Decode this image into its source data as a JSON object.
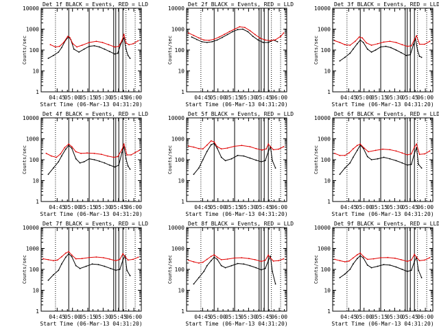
{
  "figure": {
    "start_time": "06-Mar-13 04:31:20",
    "xlabel": "Start Time (06-Mar-13 04:31:20)",
    "ylabel": "Counts/sec",
    "x_tick_labels": [
      "04:45",
      "05:00",
      "05:15",
      "05:30",
      "05:45",
      "06:00"
    ],
    "y_tick_labels": [
      "1",
      "10",
      "100",
      "1000",
      "10000"
    ],
    "colors": {
      "events": "#000000",
      "lld": "#e00000"
    }
  },
  "chart_data": [
    {
      "type": "line",
      "title": "Det 1f BLACK = Events, RED = LLD",
      "xlabel": "Start Time (06-Mar-13 04:31:20)",
      "ylabel": "Counts/sec",
      "xlim_min": [
        -2,
        96
      ],
      "ylim": [
        1,
        10000
      ],
      "yscale": "log",
      "dotted_vlines_min": [
        12,
        81,
        90
      ],
      "solid_vlines_min": [
        25,
        45,
        69,
        71,
        74,
        78
      ],
      "series": [
        {
          "name": "Events",
          "color": "#000000",
          "x": [
            5,
            10,
            15,
            18,
            22,
            25,
            27,
            30,
            35,
            40,
            45,
            50,
            55,
            60,
            65,
            70,
            73,
            76,
            79,
            81,
            83,
            85
          ],
          "y": [
            40,
            55,
            80,
            130,
            300,
            430,
            320,
            110,
            80,
            110,
            150,
            160,
            140,
            110,
            85,
            65,
            70,
            200,
            380,
            110,
            55,
            40
          ]
        },
        {
          "name": "LLD",
          "color": "#e00000",
          "x": [
            7,
            12,
            16,
            20,
            24,
            26,
            29,
            33,
            38,
            45,
            52,
            58,
            64,
            70,
            74,
            77,
            79,
            81,
            84,
            88,
            93
          ],
          "y": [
            180,
            140,
            150,
            230,
            450,
            400,
            200,
            140,
            170,
            230,
            260,
            230,
            180,
            140,
            150,
            280,
            560,
            220,
            180,
            200,
            280
          ]
        }
      ]
    },
    {
      "type": "line",
      "title": "Det 2f BLACK = Events, RED = LLD",
      "xlabel": "Start Time (06-Mar-13 04:31:20)",
      "ylabel": "Counts/sec",
      "xlim_min": [
        -2,
        96
      ],
      "ylim": [
        1,
        10000
      ],
      "yscale": "log",
      "dotted_vlines_min": [
        12,
        81,
        90
      ],
      "solid_vlines_min": [
        25,
        45,
        69,
        71,
        74,
        78
      ],
      "series": [
        {
          "name": "Events",
          "color": "#000000",
          "x": [
            3,
            8,
            13,
            18,
            23,
            28,
            33,
            38,
            43,
            48,
            53,
            58,
            63,
            68,
            73,
            78,
            83,
            87
          ],
          "y": [
            420,
            320,
            250,
            230,
            250,
            300,
            400,
            550,
            750,
            950,
            1000,
            750,
            450,
            300,
            230,
            230,
            300,
            250
          ]
        },
        {
          "name": "LLD",
          "color": "#e00000",
          "x": [
            0,
            5,
            10,
            15,
            20,
            25,
            30,
            35,
            40,
            45,
            50,
            55,
            60,
            65,
            70,
            75,
            80,
            85,
            90,
            93
          ],
          "y": [
            650,
            500,
            380,
            300,
            290,
            330,
            420,
            560,
            760,
            1000,
            1300,
            1200,
            850,
            550,
            370,
            300,
            280,
            310,
            450,
            650
          ]
        }
      ]
    },
    {
      "type": "line",
      "title": "Det 3f BLACK = Events, RED = LLD",
      "xlabel": "Start Time (06-Mar-13 04:31:20)",
      "ylabel": "Counts/sec",
      "xlim_min": [
        -2,
        96
      ],
      "ylim": [
        1,
        10000
      ],
      "yscale": "log",
      "dotted_vlines_min": [
        12,
        81,
        90
      ],
      "solid_vlines_min": [
        25,
        45,
        69,
        71,
        74,
        78
      ],
      "series": [
        {
          "name": "Events",
          "color": "#000000",
          "x": [
            5,
            10,
            15,
            18,
            22,
            25,
            28,
            32,
            36,
            40,
            45,
            50,
            55,
            60,
            65,
            70,
            74,
            77,
            79,
            81,
            83,
            85
          ],
          "y": [
            30,
            45,
            70,
            110,
            200,
            300,
            230,
            110,
            80,
            100,
            140,
            150,
            130,
            100,
            75,
            55,
            60,
            180,
            340,
            100,
            50,
            45
          ]
        },
        {
          "name": "LLD",
          "color": "#e00000",
          "x": [
            0,
            5,
            10,
            15,
            20,
            24,
            27,
            31,
            36,
            42,
            48,
            54,
            60,
            66,
            71,
            75,
            78,
            80,
            83,
            88,
            93
          ],
          "y": [
            280,
            230,
            180,
            170,
            260,
            420,
            380,
            220,
            170,
            200,
            240,
            260,
            230,
            180,
            150,
            160,
            320,
            480,
            190,
            190,
            260
          ]
        }
      ]
    },
    {
      "type": "line",
      "title": "Det 4f BLACK = Events, RED = LLD",
      "xlabel": "Start Time (06-Mar-13 04:31:20)",
      "ylabel": "Counts/sec",
      "xlim_min": [
        -2,
        96
      ],
      "ylim": [
        1,
        10000
      ],
      "yscale": "log",
      "dotted_vlines_min": [
        12,
        81,
        90
      ],
      "solid_vlines_min": [
        25,
        45,
        69,
        71,
        74,
        78
      ],
      "series": [
        {
          "name": "Events",
          "color": "#000000",
          "x": [
            5,
            10,
            15,
            18,
            22,
            25,
            28,
            32,
            36,
            40,
            45,
            50,
            55,
            60,
            65,
            70,
            74,
            77,
            79,
            81,
            83,
            85
          ],
          "y": [
            20,
            40,
            80,
            150,
            320,
            480,
            350,
            110,
            70,
            80,
            110,
            100,
            85,
            70,
            55,
            45,
            55,
            220,
            420,
            110,
            50,
            35
          ]
        },
        {
          "name": "LLD",
          "color": "#e00000",
          "x": [
            3,
            8,
            13,
            17,
            21,
            25,
            28,
            32,
            37,
            43,
            50,
            57,
            63,
            69,
            73,
            77,
            79,
            82,
            86,
            90,
            94
          ],
          "y": [
            200,
            150,
            130,
            190,
            380,
            560,
            420,
            240,
            200,
            210,
            200,
            180,
            150,
            130,
            140,
            300,
            560,
            170,
            170,
            220,
            280
          ]
        }
      ]
    },
    {
      "type": "line",
      "title": "Det 5f BLACK = Events, RED = LLD",
      "xlabel": "Start Time (06-Mar-13 04:31:20)",
      "ylabel": "Counts/sec",
      "xlim_min": [
        -2,
        96
      ],
      "ylim": [
        1,
        10000
      ],
      "yscale": "log",
      "dotted_vlines_min": [
        12,
        81,
        90
      ],
      "solid_vlines_min": [
        25,
        45,
        69,
        71,
        74,
        78
      ],
      "series": [
        {
          "name": "Events",
          "color": "#000000",
          "x": [
            5,
            10,
            14,
            18,
            22,
            25,
            28,
            32,
            36,
            42,
            48,
            54,
            60,
            66,
            71,
            75,
            78,
            80,
            82,
            85
          ],
          "y": [
            20,
            40,
            100,
            250,
            520,
            600,
            350,
            130,
            90,
            110,
            160,
            150,
            120,
            95,
            80,
            90,
            250,
            420,
            90,
            40
          ]
        },
        {
          "name": "LLD",
          "color": "#e00000",
          "x": [
            0,
            5,
            10,
            14,
            18,
            22,
            25,
            28,
            32,
            38,
            45,
            52,
            60,
            66,
            72,
            76,
            78,
            80,
            83,
            88,
            93
          ],
          "y": [
            450,
            400,
            340,
            330,
            500,
            800,
            700,
            420,
            330,
            360,
            440,
            480,
            420,
            340,
            290,
            330,
            560,
            420,
            300,
            320,
            420
          ]
        }
      ]
    },
    {
      "type": "line",
      "title": "Det 6f BLACK = Events, RED = LLD",
      "xlabel": "Start Time (06-Mar-13 04:31:20)",
      "ylabel": "Counts/sec",
      "xlim_min": [
        -2,
        96
      ],
      "ylim": [
        1,
        10000
      ],
      "yscale": "log",
      "dotted_vlines_min": [
        12,
        81,
        90
      ],
      "solid_vlines_min": [
        25,
        45,
        69,
        71,
        74,
        78
      ],
      "series": [
        {
          "name": "Events",
          "color": "#000000",
          "x": [
            5,
            10,
            15,
            18,
            22,
            25,
            28,
            32,
            36,
            42,
            48,
            54,
            60,
            66,
            71,
            75,
            78,
            80,
            82,
            85
          ],
          "y": [
            20,
            40,
            70,
            130,
            280,
            500,
            350,
            140,
            100,
            110,
            130,
            110,
            90,
            70,
            55,
            60,
            200,
            380,
            60,
            40
          ]
        },
        {
          "name": "LLD",
          "color": "#e00000",
          "x": [
            0,
            5,
            10,
            14,
            18,
            22,
            25,
            29,
            33,
            40,
            47,
            54,
            60,
            66,
            71,
            75,
            78,
            80,
            83,
            88,
            93
          ],
          "y": [
            200,
            160,
            160,
            210,
            330,
            480,
            560,
            350,
            240,
            280,
            320,
            300,
            260,
            210,
            170,
            190,
            400,
            560,
            180,
            190,
            260
          ]
        }
      ]
    },
    {
      "type": "line",
      "title": "Det 7f BLACK = Events, RED = LLD",
      "xlabel": "Start Time (06-Mar-13 04:31:20)",
      "ylabel": "Counts/sec",
      "xlim_min": [
        -2,
        96
      ],
      "ylim": [
        1,
        10000
      ],
      "yscale": "log",
      "dotted_vlines_min": [
        12,
        81,
        90
      ],
      "solid_vlines_min": [
        25,
        45,
        69,
        71,
        74,
        78
      ],
      "series": [
        {
          "name": "Events",
          "color": "#000000",
          "x": [
            5,
            10,
            15,
            18,
            22,
            25,
            28,
            32,
            36,
            42,
            48,
            54,
            60,
            66,
            71,
            75,
            78,
            80,
            82,
            85
          ],
          "y": [
            30,
            55,
            90,
            180,
            380,
            560,
            400,
            150,
            110,
            140,
            180,
            170,
            140,
            110,
            90,
            100,
            280,
            450,
            90,
            50
          ]
        },
        {
          "name": "LLD",
          "color": "#e00000",
          "x": [
            0,
            5,
            10,
            14,
            18,
            22,
            25,
            28,
            32,
            38,
            45,
            52,
            59,
            65,
            71,
            75,
            78,
            80,
            83,
            88,
            93
          ],
          "y": [
            320,
            290,
            260,
            280,
            400,
            600,
            700,
            480,
            320,
            330,
            370,
            390,
            360,
            310,
            260,
            300,
            560,
            420,
            280,
            300,
            380
          ]
        }
      ]
    },
    {
      "type": "line",
      "title": "Det 8f BLACK = Events, RED = LLD",
      "xlabel": "Start Time (06-Mar-13 04:31:20)",
      "ylabel": "Counts/sec",
      "xlim_min": [
        -2,
        96
      ],
      "ylim": [
        1,
        10000
      ],
      "yscale": "log",
      "dotted_vlines_min": [
        12,
        81,
        90
      ],
      "solid_vlines_min": [
        25,
        45,
        69,
        71,
        74,
        78
      ],
      "series": [
        {
          "name": "Events",
          "color": "#000000",
          "x": [
            5,
            10,
            15,
            18,
            22,
            25,
            28,
            32,
            36,
            42,
            48,
            54,
            60,
            66,
            71,
            75,
            78,
            80,
            82,
            85
          ],
          "y": [
            20,
            40,
            80,
            150,
            260,
            380,
            300,
            150,
            120,
            150,
            190,
            180,
            150,
            120,
            95,
            110,
            260,
            420,
            80,
            20
          ]
        },
        {
          "name": "LLD",
          "color": "#e00000",
          "x": [
            0,
            5,
            10,
            14,
            18,
            22,
            25,
            28,
            32,
            38,
            45,
            52,
            59,
            65,
            71,
            75,
            78,
            80,
            83,
            88,
            93
          ],
          "y": [
            270,
            230,
            200,
            220,
            300,
            420,
            500,
            380,
            290,
            310,
            350,
            360,
            330,
            290,
            240,
            270,
            480,
            350,
            250,
            260,
            320
          ]
        }
      ]
    },
    {
      "type": "line",
      "title": "Det 9f BLACK = Events, RED = LLD",
      "xlabel": "Start Time (06-Mar-13 04:31:20)",
      "ylabel": "Counts/sec",
      "xlim_min": [
        -2,
        96
      ],
      "ylim": [
        1,
        10000
      ],
      "yscale": "log",
      "dotted_vlines_min": [
        12,
        81,
        90
      ],
      "solid_vlines_min": [
        25,
        45,
        69,
        71,
        74,
        78
      ],
      "series": [
        {
          "name": "Events",
          "color": "#000000",
          "x": [
            5,
            10,
            15,
            18,
            22,
            25,
            28,
            32,
            36,
            42,
            48,
            54,
            60,
            66,
            71,
            75,
            78,
            80,
            82,
            85
          ],
          "y": [
            40,
            60,
            100,
            180,
            330,
            450,
            350,
            160,
            120,
            140,
            170,
            160,
            130,
            100,
            80,
            90,
            240,
            380,
            90,
            40
          ]
        },
        {
          "name": "LLD",
          "color": "#e00000",
          "x": [
            0,
            5,
            10,
            14,
            18,
            22,
            25,
            28,
            32,
            38,
            45,
            52,
            59,
            65,
            71,
            75,
            78,
            80,
            83,
            88,
            93
          ],
          "y": [
            300,
            260,
            230,
            250,
            350,
            500,
            600,
            420,
            300,
            320,
            360,
            370,
            340,
            290,
            240,
            280,
            520,
            380,
            260,
            280,
            360
          ]
        }
      ]
    }
  ]
}
